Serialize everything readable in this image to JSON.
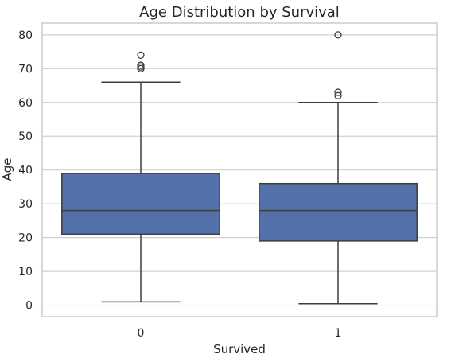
{
  "chart_data": {
    "type": "box",
    "title": "Age Distribution by Survival",
    "xlabel": "Survived",
    "ylabel": "Age",
    "categories": [
      "0",
      "1"
    ],
    "ylim": [
      -3.4,
      83.5
    ],
    "yticks": [
      0,
      10,
      20,
      30,
      40,
      50,
      60,
      70,
      80
    ],
    "grid": true,
    "box_color": "#5470a8",
    "boxes": [
      {
        "category": "0",
        "whisker_low": 1,
        "q1": 21,
        "median": 28,
        "q3": 39,
        "whisker_high": 66,
        "outliers": [
          70,
          70.5,
          71,
          74
        ]
      },
      {
        "category": "1",
        "whisker_low": 0.42,
        "q1": 19,
        "median": 28,
        "q3": 36,
        "whisker_high": 60,
        "outliers": [
          62,
          63,
          80
        ]
      }
    ]
  }
}
